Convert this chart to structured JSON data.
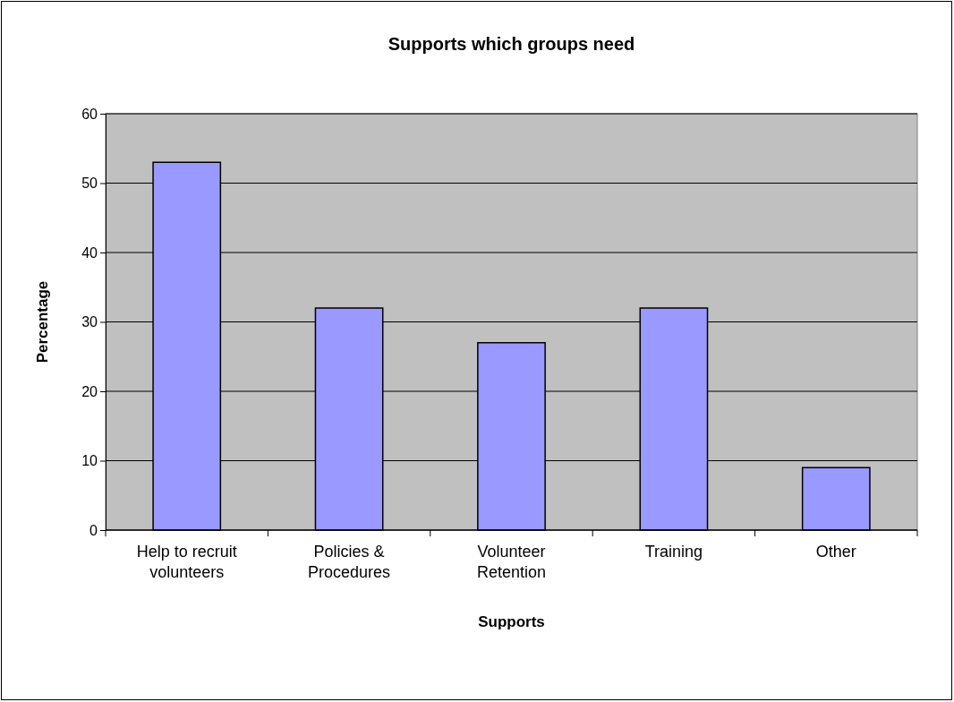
{
  "chart_data": {
    "type": "bar",
    "title": "Supports which groups need",
    "xlabel": "Supports",
    "ylabel": "Percentage",
    "categories": [
      "Help to recruit volunteers",
      "Policies & Procedures",
      "Volunteer Retention",
      "Training",
      "Other"
    ],
    "values": [
      53,
      32,
      27,
      32,
      9
    ],
    "color": "#9999ff",
    "ylim": [
      0,
      60
    ],
    "yticks": [
      0,
      10,
      20,
      30,
      40,
      50,
      60
    ],
    "grid": "y"
  }
}
